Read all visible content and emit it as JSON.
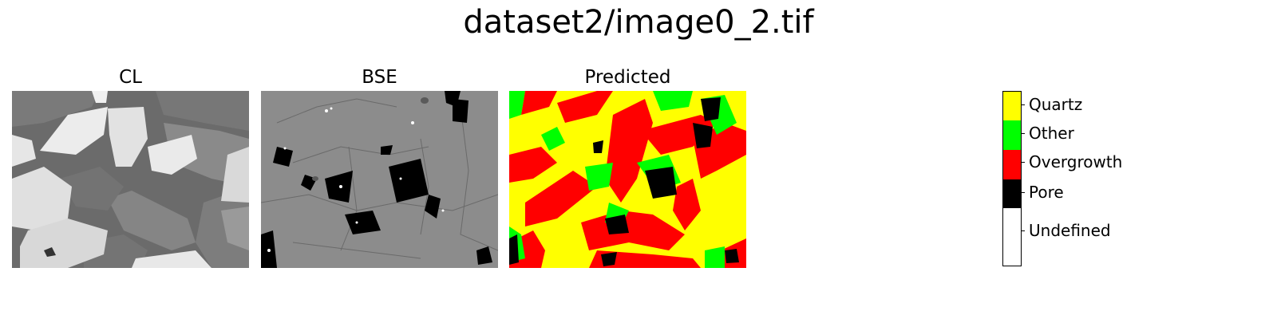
{
  "figure": {
    "title": "dataset2/image0_2.tif"
  },
  "panels": [
    {
      "id": "cl",
      "title": "CL"
    },
    {
      "id": "bse",
      "title": "BSE"
    },
    {
      "id": "pred",
      "title": "Predicted"
    }
  ],
  "legend": {
    "classes": [
      {
        "label": "Quartz",
        "color": "#ffff00"
      },
      {
        "label": "Other",
        "color": "#00ff00"
      },
      {
        "label": "Overgrowth",
        "color": "#ff0000"
      },
      {
        "label": "Pore",
        "color": "#000000"
      },
      {
        "label": "Undefined",
        "color": "#ffffff"
      }
    ]
  },
  "colors": {
    "cl_background": "#6b6b6b",
    "cl_grain_bright": "#e8e8e8",
    "cl_grain_mid": "#8a8a8a",
    "bse_background": "#8c8c8c",
    "bse_pore": "#000000"
  }
}
